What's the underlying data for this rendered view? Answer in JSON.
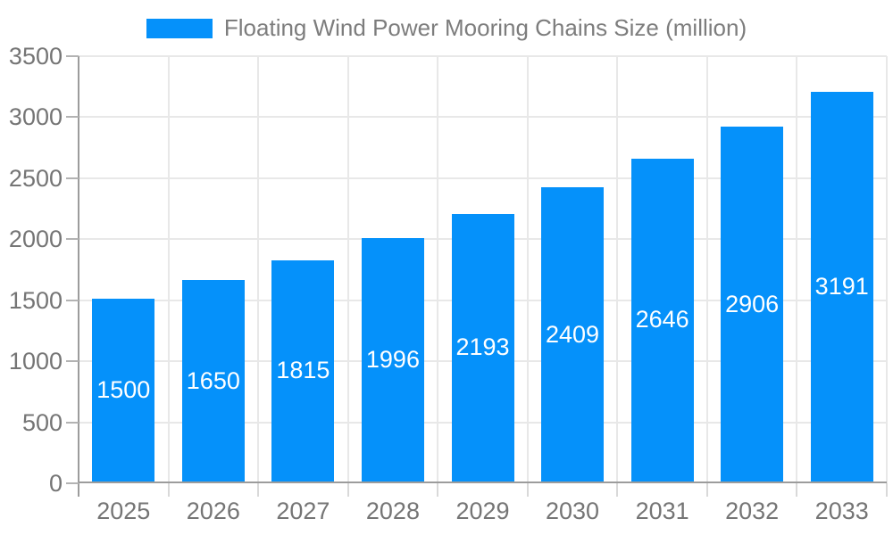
{
  "chart_data": {
    "type": "bar",
    "title": "Floating Wind Power Mooring Chains Size (million)",
    "legend_entries": [
      "Floating Wind Power Mooring Chains Size (million)"
    ],
    "legend_position": "top-center",
    "categories": [
      "2025",
      "2026",
      "2027",
      "2028",
      "2029",
      "2030",
      "2031",
      "2032",
      "2033"
    ],
    "values": [
      1500,
      1650,
      1815,
      1996,
      2193,
      2409,
      2646,
      2906,
      3191
    ],
    "value_labels_inside_bars": true,
    "xlabel": "",
    "ylabel": "",
    "ylim": [
      0,
      3500
    ],
    "ytick_step": 500,
    "yticks": [
      "0",
      "500",
      "1000",
      "1500",
      "2000",
      "2500",
      "3000",
      "3500"
    ],
    "grid": true
  },
  "colors": {
    "bar": "#0591fa",
    "grid": "#e8e8e8",
    "axis": "#9c9c9c",
    "tick": "#b3b3b3",
    "x_tick": "#d9d9d9",
    "tick_label": "#757575",
    "legend_text": "#7d7d7d",
    "value_label": "#ffffff",
    "background": "#ffffff"
  }
}
